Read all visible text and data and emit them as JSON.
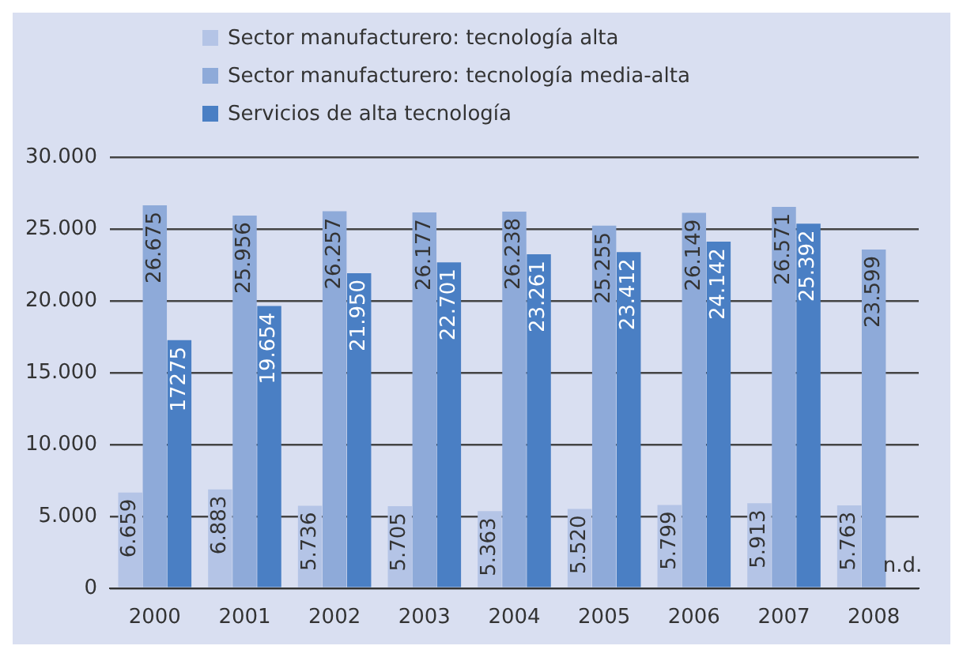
{
  "chart_data": {
    "type": "bar",
    "categories": [
      "2000",
      "2001",
      "2002",
      "2003",
      "2004",
      "2005",
      "2006",
      "2007",
      "2008"
    ],
    "series": [
      {
        "name": "Sector manufacturero: tecnología alta",
        "color": "#b4c4e6",
        "values": [
          6659,
          6883,
          5736,
          5705,
          5363,
          5520,
          5799,
          5913,
          5763
        ],
        "value_labels": [
          "6.659",
          "6.883",
          "5.736",
          "5.705",
          "5.363",
          "5.520",
          "5.799",
          "5.913",
          "5.763"
        ]
      },
      {
        "name": "Sector manufacturero: tecnología media-alta",
        "color": "#8eaad9",
        "values": [
          26675,
          25956,
          26257,
          26177,
          26238,
          25255,
          26149,
          26571,
          23599
        ],
        "value_labels": [
          "26.675",
          "25.956",
          "26.257",
          "26.177",
          "26.238",
          "25.255",
          "26.149",
          "26.571",
          "23.599"
        ]
      },
      {
        "name": "Servicios de alta tecnología",
        "color": "#4a7fc4",
        "values": [
          17275,
          19654,
          21950,
          22701,
          23261,
          23412,
          24142,
          25392,
          null
        ],
        "value_labels": [
          "17275",
          "19.654",
          "21.950",
          "22.701",
          "23.261",
          "23.412",
          "24.142",
          "25.392",
          null
        ]
      }
    ],
    "ylim": [
      0,
      30000
    ],
    "yticks": [
      {
        "value": 0,
        "label": "0"
      },
      {
        "value": 5000,
        "label": "5.000"
      },
      {
        "value": 10000,
        "label": "10.000"
      },
      {
        "value": 15000,
        "label": "15.000"
      },
      {
        "value": 20000,
        "label": "20.000"
      },
      {
        "value": 25000,
        "label": "25.000"
      },
      {
        "value": 30000,
        "label": "30.000"
      }
    ],
    "grid": "y",
    "legend": "top",
    "annotations": [
      {
        "text": "n.d.",
        "x": "2008",
        "y": 0
      }
    ]
  }
}
